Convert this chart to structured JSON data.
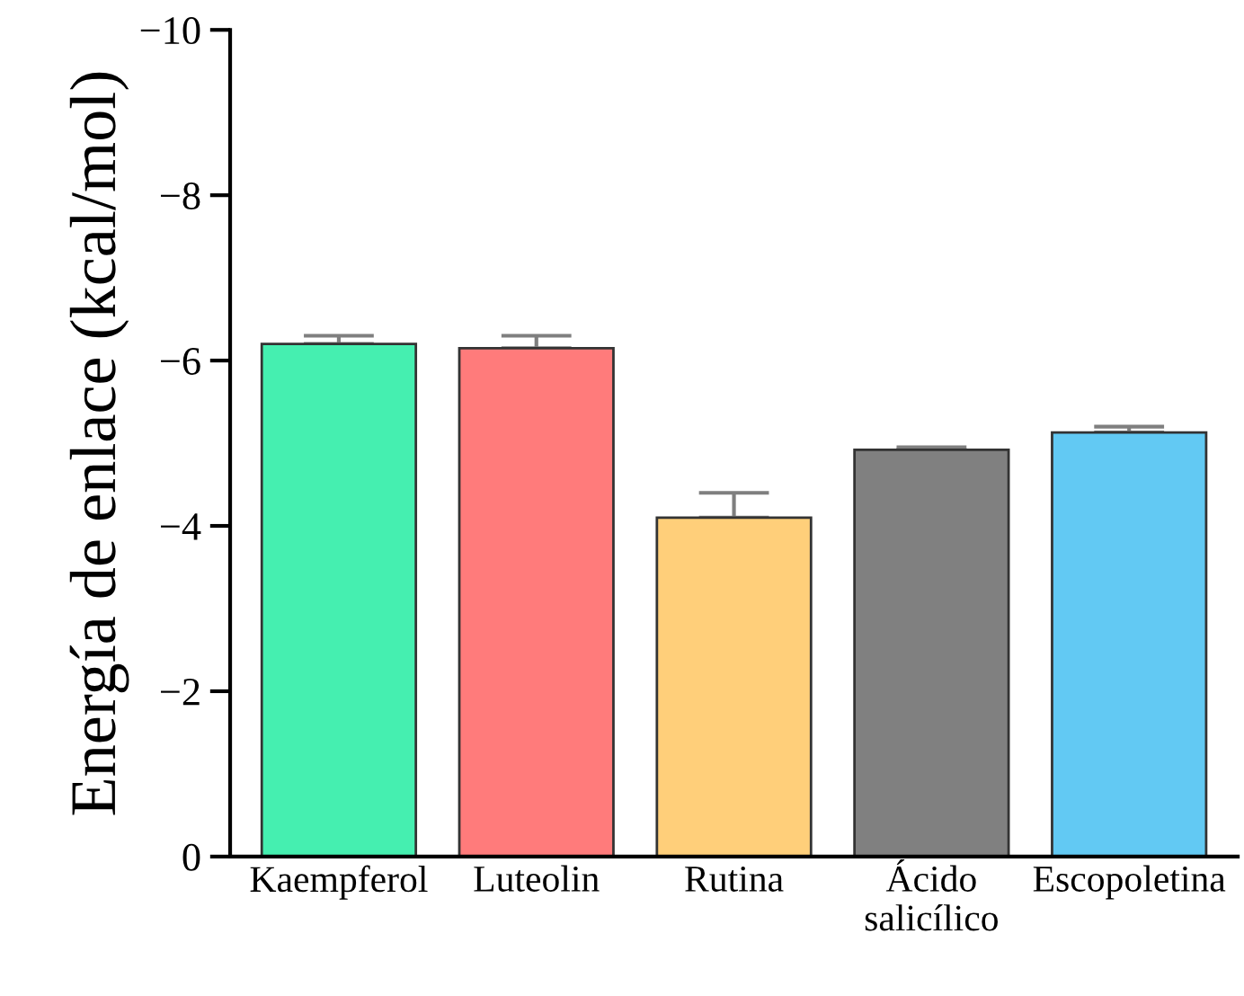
{
  "chart_data": {
    "type": "bar",
    "ylabel": "Energía de enlace (kcal/mol)",
    "categories": [
      "Kaempferol",
      "Luteolin",
      "Rutina",
      "Ácido\nsalicílico",
      "Escopoletina"
    ],
    "values": [
      -6.2,
      -6.15,
      -4.1,
      -4.92,
      -5.13
    ],
    "colors": [
      "#45efb0",
      "#ff7b7b",
      "#ffcf7a",
      "#808080",
      "#62c9f3"
    ],
    "errors": [
      [
        -6.3,
        -6.2
      ],
      [
        -6.3,
        -6.15
      ],
      [
        -4.4,
        -4.1
      ],
      [
        -4.95,
        -4.92
      ],
      [
        -5.2,
        -5.13
      ]
    ],
    "ylim": [
      0,
      -10
    ],
    "yticks": [
      {
        "value": 0,
        "label": "0"
      },
      {
        "value": -2,
        "label": "−2"
      },
      {
        "value": -4,
        "label": "−4"
      },
      {
        "value": -6,
        "label": "−6"
      },
      {
        "value": -8,
        "label": "−8"
      },
      {
        "value": -10,
        "label": "−10"
      }
    ],
    "grid": false,
    "legend": false
  }
}
